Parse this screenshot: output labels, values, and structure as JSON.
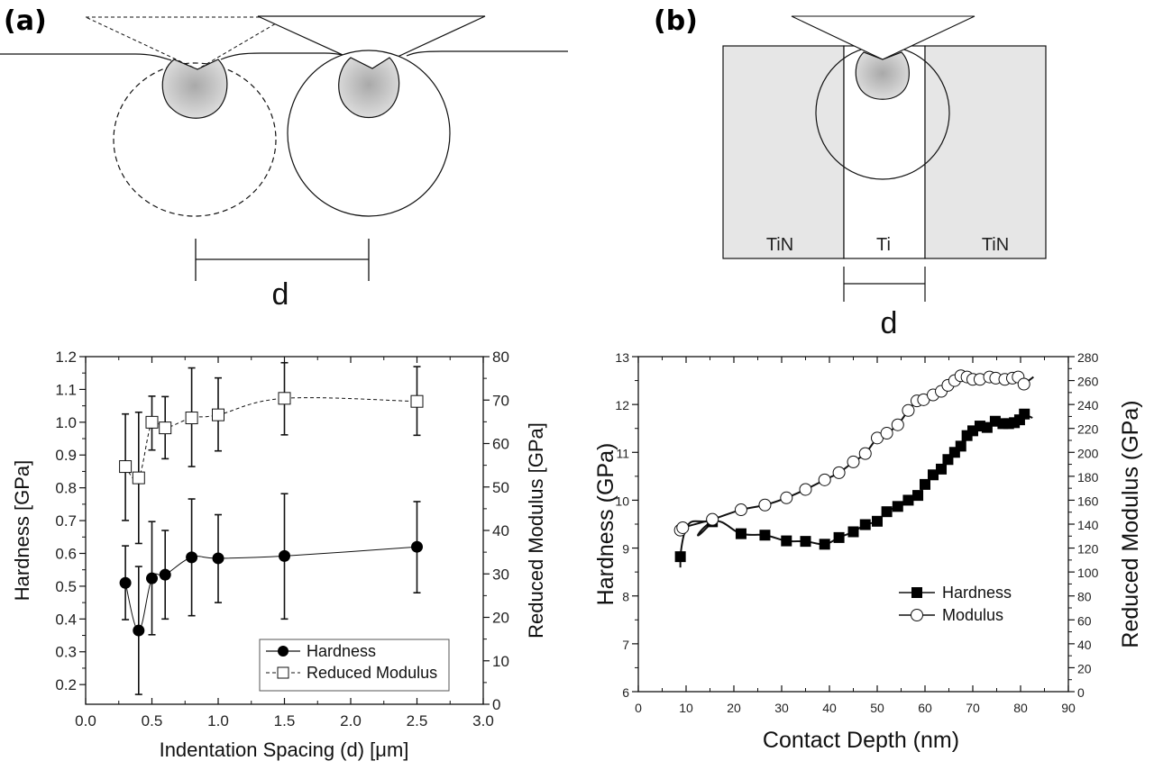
{
  "figure": {
    "panel_a_label": "(a)",
    "panel_b_label": "(b)",
    "diagram_a": {
      "spacing_label": "d"
    },
    "diagram_b": {
      "left_layer": "TiN",
      "middle_layer": "Ti",
      "right_layer": "TiN",
      "spacing_label": "d"
    }
  },
  "chart_data": [
    {
      "type": "scatter",
      "title": "",
      "xlabel": "Indentation Spacing (d) [μm]",
      "ylabel": "Hardness [GPa]",
      "y2label": "Reduced Modulus [GPa]",
      "xlim": [
        0.0,
        3.0
      ],
      "ylim": [
        0.14,
        1.2
      ],
      "y2lim": [
        0,
        80
      ],
      "x_ticks": [
        "0.0",
        "0.5",
        "1.0",
        "1.5",
        "2.0",
        "2.5",
        "3.0"
      ],
      "y_ticks": [
        "0.2",
        "0.3",
        "0.4",
        "0.5",
        "0.6",
        "0.7",
        "0.8",
        "0.9",
        "1.0",
        "1.1",
        "1.2"
      ],
      "y2_ticks": [
        "0",
        "10",
        "20",
        "30",
        "40",
        "50",
        "60",
        "70",
        "80"
      ],
      "grid": false,
      "legend_position": "bottom-right",
      "series": [
        {
          "name": "Hardness",
          "axis": "left",
          "marker": "filled-circle",
          "line": "solid",
          "x": [
            0.3,
            0.4,
            0.5,
            0.6,
            0.8,
            1.0,
            1.5,
            2.5
          ],
          "values": [
            0.51,
            0.365,
            0.524,
            0.535,
            0.588,
            0.585,
            0.592,
            0.62
          ],
          "err_low": [
            0.398,
            0.17,
            0.352,
            0.4,
            0.41,
            0.45,
            0.4,
            0.48
          ],
          "err_high": [
            0.623,
            0.56,
            0.697,
            0.67,
            0.766,
            0.718,
            0.782,
            0.758
          ]
        },
        {
          "name": "Reduced Modulus",
          "axis": "right",
          "marker": "open-square",
          "line": "dashed",
          "x": [
            0.3,
            0.4,
            0.5,
            0.6,
            0.8,
            1.0,
            1.5,
            2.5
          ],
          "values": [
            54.7,
            52.1,
            64.9,
            63.6,
            65.9,
            66.6,
            70.4,
            69.7
          ],
          "err_low": [
            42.3,
            37.0,
            58.5,
            56.5,
            54.7,
            58.3,
            62.0,
            61.9
          ],
          "err_high": [
            66.8,
            67.2,
            70.9,
            70.8,
            77.4,
            75.1,
            78.6,
            77.7
          ]
        }
      ]
    },
    {
      "type": "line",
      "title": "",
      "xlabel": "Contact Depth (nm)",
      "ylabel": "Hardness (GPa)",
      "y2label": "Reduced Modulus (GPa)",
      "xlim": [
        0,
        90
      ],
      "ylim": [
        6,
        13
      ],
      "y2lim": [
        0,
        280
      ],
      "x_ticks": [
        "0",
        "10",
        "20",
        "30",
        "40",
        "50",
        "60",
        "70",
        "80",
        "90"
      ],
      "y_ticks": [
        "6",
        "7",
        "8",
        "9",
        "10",
        "11",
        "12",
        "13"
      ],
      "y2_ticks": [
        "0",
        "20",
        "40",
        "60",
        "80",
        "100",
        "120",
        "140",
        "160",
        "180",
        "200",
        "220",
        "240",
        "260",
        "280"
      ],
      "grid": false,
      "legend_position": "center-right",
      "series": [
        {
          "name": "Hardness",
          "axis": "left",
          "marker": "filled-square",
          "x": [
            8.8,
            15.5,
            21.5,
            26.5,
            31,
            35,
            39,
            42,
            45,
            47.5,
            50,
            52,
            54.3,
            56.5,
            58.5,
            60,
            61.7,
            63.4,
            64.8,
            66.2,
            67.5,
            68.8,
            70,
            71.5,
            73,
            74.7,
            76.3,
            77.5,
            78.7,
            79.8,
            80.8
          ],
          "values": [
            8.82,
            9.55,
            9.3,
            9.27,
            9.15,
            9.14,
            9.08,
            9.22,
            9.34,
            9.49,
            9.56,
            9.76,
            9.87,
            10.0,
            10.1,
            10.33,
            10.53,
            10.65,
            10.85,
            11.0,
            11.13,
            11.35,
            11.45,
            11.55,
            11.52,
            11.65,
            11.6,
            11.6,
            11.62,
            11.68,
            11.8
          ]
        },
        {
          "name": "Modulus",
          "axis": "right",
          "marker": "open-circle",
          "x": [
            8.8,
            9.3,
            15.5,
            21.5,
            26.5,
            31,
            35,
            39,
            42,
            45,
            47.5,
            50,
            52,
            54.3,
            56.5,
            58.3,
            59.7,
            61.7,
            63.4,
            64.8,
            66.2,
            67.5,
            68.8,
            70,
            71.5,
            73.5,
            74.8,
            76.7,
            78.3,
            79.5,
            80.7
          ],
          "values": [
            135,
            137,
            144,
            152,
            156,
            162,
            169,
            177,
            183,
            192,
            199,
            212,
            216,
            223,
            235,
            243,
            244,
            248,
            251,
            256,
            260,
            264,
            263,
            261,
            261,
            263,
            262,
            261,
            262,
            263,
            257
          ]
        }
      ]
    }
  ]
}
